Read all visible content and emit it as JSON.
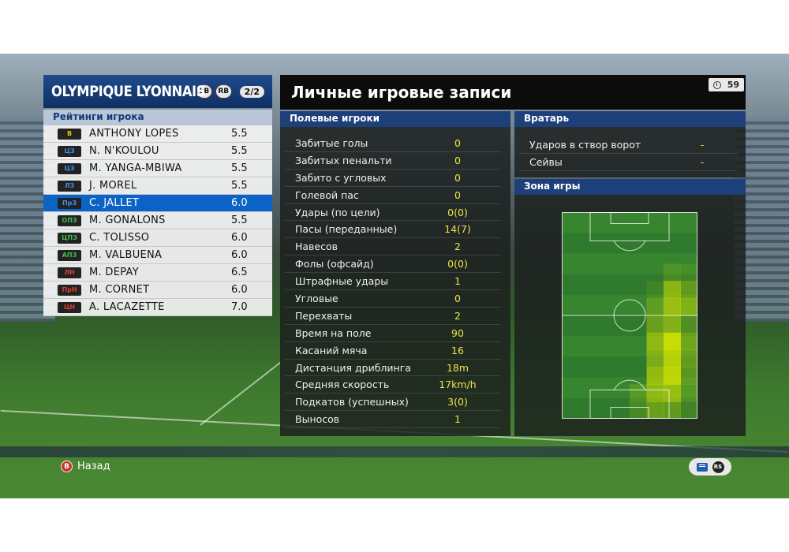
{
  "team": {
    "name": "OLYMPIQUE LYONNAIS",
    "btn_lb": "LB",
    "btn_rb": "RB",
    "page": "2/2",
    "ratings_title": "Рейтинги игрока",
    "players": [
      {
        "pos": "В",
        "pos_color": "#e7c400",
        "name": "ANTHONY LOPES",
        "rating": "5.5"
      },
      {
        "pos": "ЦЗ",
        "pos_color": "#3f93e8",
        "name": "N. N'KOULOU",
        "rating": "5.5"
      },
      {
        "pos": "ЦЗ",
        "pos_color": "#3f93e8",
        "name": "M. YANGA-MBIWA",
        "rating": "5.5"
      },
      {
        "pos": "ЛЗ",
        "pos_color": "#3f93e8",
        "name": "J. MOREL",
        "rating": "5.5"
      },
      {
        "pos": "ПрЗ",
        "pos_color": "#3f93e8",
        "name": "C. JALLET",
        "rating": "6.0"
      },
      {
        "pos": "ОПЗ",
        "pos_color": "#3fc24a",
        "name": "M. GONALONS",
        "rating": "5.5"
      },
      {
        "pos": "ЦПЗ",
        "pos_color": "#3fc24a",
        "name": "C. TOLISSO",
        "rating": "6.0"
      },
      {
        "pos": "АПЗ",
        "pos_color": "#3fc24a",
        "name": "M. VALBUENA",
        "rating": "6.0"
      },
      {
        "pos": "ЛН",
        "pos_color": "#e0402f",
        "name": "M. DEPAY",
        "rating": "6.5"
      },
      {
        "pos": "ПрН",
        "pos_color": "#e0402f",
        "name": "M. CORNET",
        "rating": "6.0"
      },
      {
        "pos": "ЦН",
        "pos_color": "#e0402f",
        "name": "A. LACAZETTE",
        "rating": "7.0"
      }
    ],
    "selected_index": 4
  },
  "records": {
    "title": "Личные игровые записи",
    "timer": "59",
    "field_players_title": "Полевые игроки",
    "stats": [
      {
        "label": "Забитые голы",
        "value": "0"
      },
      {
        "label": "Забитых пенальти",
        "value": "0"
      },
      {
        "label": "Забито с угловых",
        "value": "0"
      },
      {
        "label": "Голевой пас",
        "value": "0"
      },
      {
        "label": "Удары (по цели)",
        "value": "0(0)"
      },
      {
        "label": "Пасы (переданные)",
        "value": "14(7)"
      },
      {
        "label": "Навесов",
        "value": "2"
      },
      {
        "label": "Фолы (офсайд)",
        "value": "0(0)"
      },
      {
        "label": "Штрафные удары",
        "value": "1"
      },
      {
        "label": "Угловые",
        "value": "0"
      },
      {
        "label": "Перехваты",
        "value": "2"
      },
      {
        "label": "Время на поле",
        "value": "90"
      },
      {
        "label": "Касаний мяча",
        "value": "16"
      },
      {
        "label": "Дистанция дриблинга",
        "value": "18m"
      },
      {
        "label": "Средняя скорость",
        "value": "17km/h"
      },
      {
        "label": "Подкатов (успешных)",
        "value": "3(0)"
      },
      {
        "label": "Выносов",
        "value": "1"
      }
    ],
    "goalkeeper_title": "Вратарь",
    "gk_stats": [
      {
        "label": "Ударов в створ ворот",
        "value": "-"
      },
      {
        "label": "Сейвы",
        "value": "-"
      }
    ],
    "zone_title": "Зона игры"
  },
  "controls": {
    "back_button_glyph": "B",
    "back_label": "Назад",
    "rs_glyph": "RS"
  },
  "heatmap": {
    "highlight_color": "#d6e600",
    "pitch_color": "#2f7a2c",
    "cols": 8,
    "rows": 12,
    "intensity": [
      [
        0,
        0,
        0,
        0,
        0,
        0,
        0,
        0
      ],
      [
        0,
        0,
        0,
        0,
        0,
        0,
        0,
        0
      ],
      [
        0,
        0,
        0,
        0,
        0,
        0,
        0,
        0
      ],
      [
        0,
        0,
        0,
        0,
        0,
        0,
        0.15,
        0.1
      ],
      [
        0,
        0,
        0,
        0,
        0,
        0.1,
        0.55,
        0.3
      ],
      [
        0,
        0,
        0,
        0,
        0,
        0.25,
        0.6,
        0.45
      ],
      [
        0,
        0,
        0,
        0,
        0,
        0.35,
        0.5,
        0.2
      ],
      [
        0,
        0,
        0,
        0,
        0,
        0.55,
        0.9,
        0.35
      ],
      [
        0,
        0,
        0,
        0,
        0,
        0.45,
        0.8,
        0.3
      ],
      [
        0,
        0,
        0,
        0,
        0,
        0.6,
        0.85,
        0.25
      ],
      [
        0,
        0,
        0,
        0,
        0.2,
        0.55,
        0.6,
        0.2
      ],
      [
        0,
        0,
        0,
        0,
        0.15,
        0.35,
        0.3,
        0.1
      ]
    ]
  }
}
